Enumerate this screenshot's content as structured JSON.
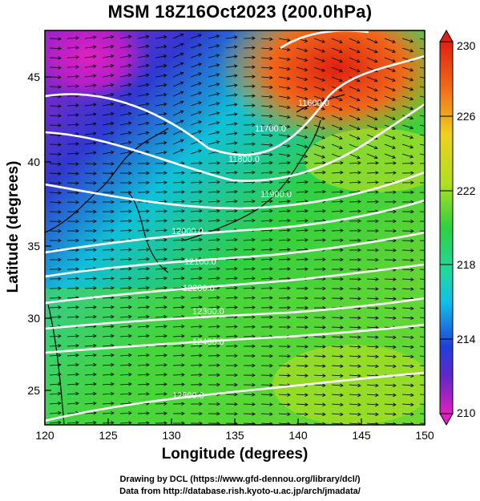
{
  "title": "MSM 18Z16Oct2023 (200.0hPa)",
  "x_axis_label": "Longitude (degrees)",
  "y_axis_label": "Latitude  (degrees)",
  "x_ticks": [
    "120",
    "125",
    "130",
    "135",
    "140",
    "145",
    "150"
  ],
  "y_ticks": [
    "25",
    "30",
    "35",
    "40",
    "45"
  ],
  "colorbar_ticks": [
    "230",
    "226",
    "222",
    "218",
    "214",
    "210"
  ],
  "contour_labels": [
    "11600.0",
    "11700.0",
    "11800.0",
    "11900.0",
    "12000.0",
    "12100.0",
    "12200.0",
    "12300.0",
    "12400.0",
    "12500.0"
  ],
  "footer": {
    "line1": "Drawing by DCL (https://www.gfd-dennou.org/library/dcl/)",
    "line2": "Data from http://database.rish.kyoto-u.ac.jp/arch/jmadata/"
  },
  "colors": {
    "magenta": "#e020c0",
    "purple": "#8a28c8",
    "blue": "#2040d8",
    "cyan": "#10c8e8",
    "green": "#30d040",
    "lime": "#b8e020",
    "orange": "#f08020",
    "red": "#e02010"
  },
  "map": {
    "lon_range": [
      120,
      150
    ],
    "lat_range": [
      22.5,
      48
    ],
    "colorbar_range": [
      210,
      230
    ]
  }
}
